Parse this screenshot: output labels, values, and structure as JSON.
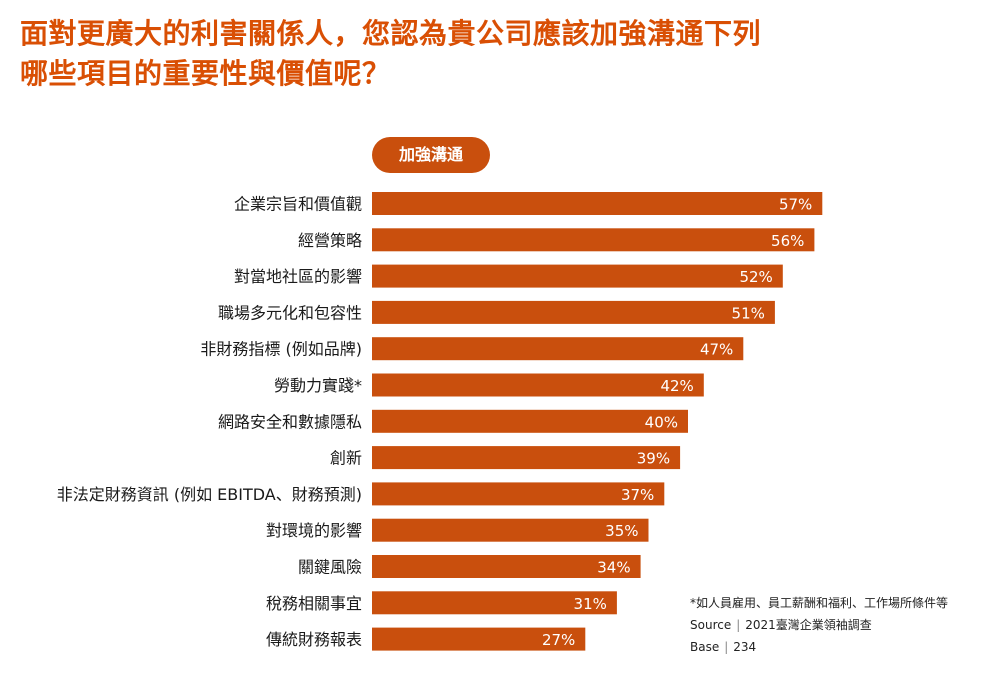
{
  "title": {
    "line1": "面對更廣大的利害關係人，您認為貴公司應該加強溝通下列",
    "line2": "哪些項目的重要性與價值呢？"
  },
  "legend_pill": "加強溝通",
  "colors": {
    "title": "#d94f04",
    "bar": "#c94f0d",
    "pill": "#c94f0d",
    "bar_text": "#ffffff",
    "label_text": "#1a1a1a"
  },
  "chart_data": {
    "type": "bar",
    "orientation": "horizontal",
    "categories": [
      "企業宗旨和價值觀",
      "經營策略",
      "對當地社區的影響",
      "職場多元化和包容性",
      "非財務指標 (例如品牌)",
      "勞動力實踐*",
      "網路安全和數據隱私",
      "創新",
      "非法定財務資訊 (例如 EBITDA、財務預測)",
      "對環境的影響",
      "關鍵風險",
      "稅務相關事宜",
      "傳統財務報表"
    ],
    "values": [
      57,
      56,
      52,
      51,
      47,
      42,
      40,
      39,
      37,
      35,
      34,
      31,
      27
    ],
    "value_labels": [
      "57%",
      "56%",
      "52%",
      "51%",
      "47%",
      "42%",
      "40%",
      "39%",
      "37%",
      "35%",
      "34%",
      "31%",
      "27%"
    ],
    "unit": "%",
    "xlim": [
      0,
      100
    ],
    "grid": false
  },
  "notes": {
    "footnote": "*如人員雇用、員工薪酬和福利、工作場所條件等",
    "source_label": "Source",
    "source_value": "2021臺灣企業領袖調查",
    "base_label": "Base",
    "base_value": "234"
  }
}
